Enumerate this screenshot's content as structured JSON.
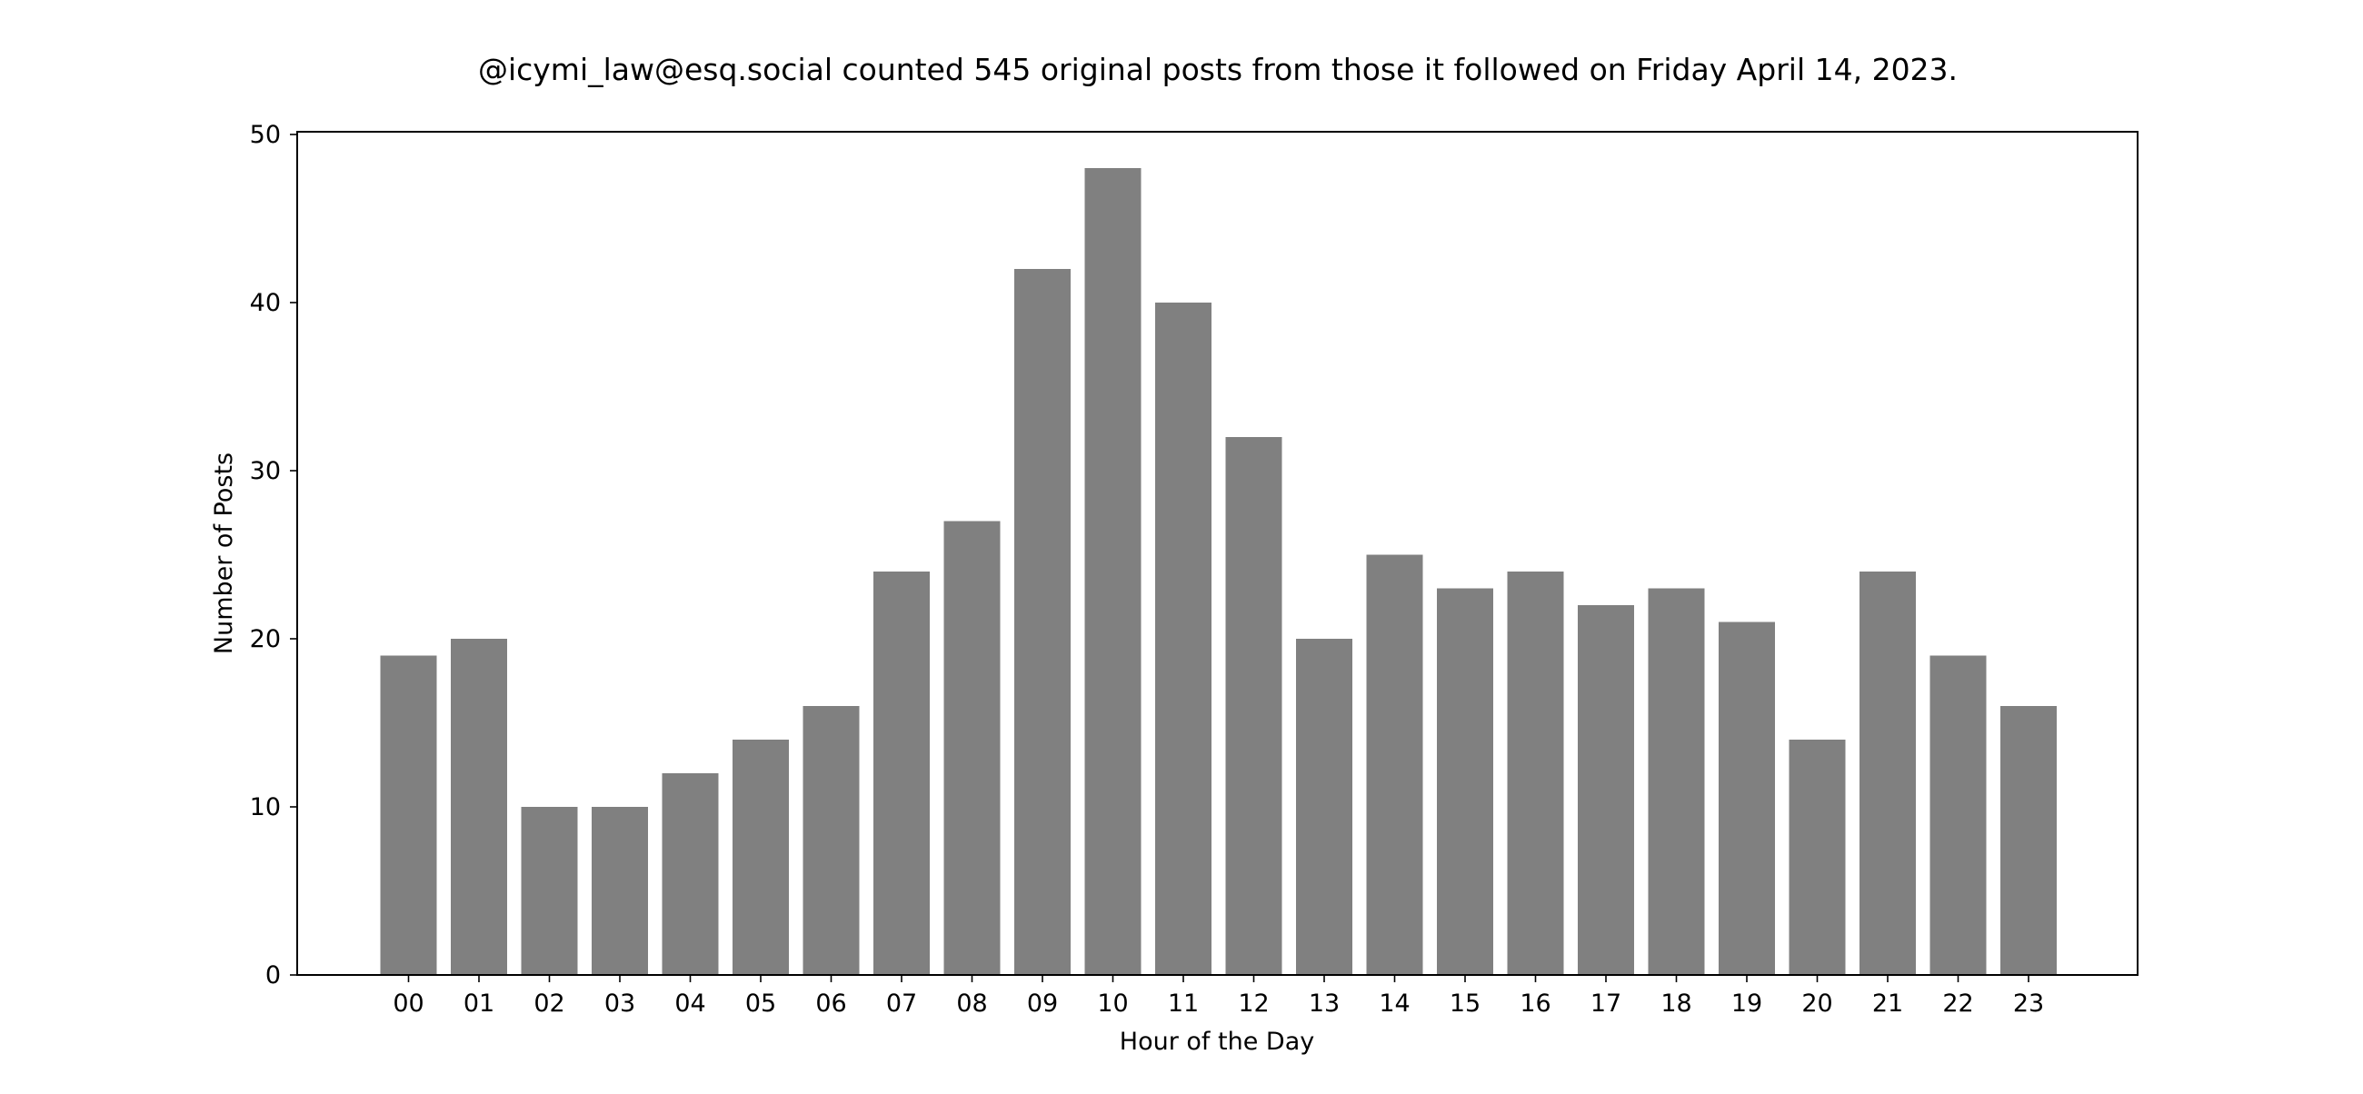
{
  "chart_data": {
    "type": "bar",
    "title": "@icymi_law@esq.social counted 545 original posts from those it followed on Friday April 14, 2023.",
    "xlabel": "Hour of the Day",
    "ylabel": "Number of Posts",
    "categories": [
      "00",
      "01",
      "02",
      "03",
      "04",
      "05",
      "06",
      "07",
      "08",
      "09",
      "10",
      "11",
      "12",
      "13",
      "14",
      "15",
      "16",
      "17",
      "18",
      "19",
      "20",
      "21",
      "22",
      "23"
    ],
    "values": [
      19,
      20,
      10,
      10,
      12,
      14,
      16,
      24,
      27,
      42,
      48,
      40,
      32,
      20,
      25,
      23,
      24,
      22,
      23,
      21,
      14,
      24,
      19,
      16
    ],
    "ylim": [
      0,
      50
    ],
    "yticks": [
      "0",
      "10",
      "20",
      "30",
      "40",
      "50"
    ],
    "bar_color": "#808080",
    "grid": false,
    "legend": "none"
  }
}
